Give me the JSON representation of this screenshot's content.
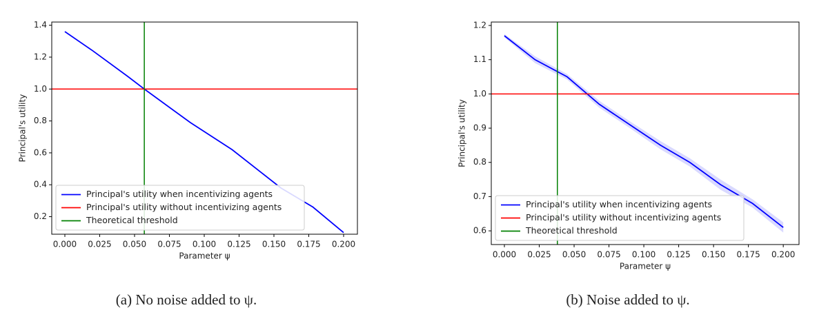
{
  "chart_data": [
    {
      "type": "line",
      "xlabel": "Parameter ψ",
      "ylabel": "Principal's utility",
      "caption": "(a) No noise added to ψ.",
      "xlim": [
        -0.0094,
        0.2099
      ],
      "ylim": [
        0.09,
        1.42
      ],
      "xticks": [
        {
          "value": 0,
          "label": "0.000"
        },
        {
          "value": 0.025,
          "label": "0.025"
        },
        {
          "value": 0.05,
          "label": "0.050"
        },
        {
          "value": 0.075,
          "label": "0.075"
        },
        {
          "value": 0.1,
          "label": "0.100"
        },
        {
          "value": 0.125,
          "label": "0.125"
        },
        {
          "value": 0.15,
          "label": "0.150"
        },
        {
          "value": 0.175,
          "label": "0.175"
        },
        {
          "value": 0.2,
          "label": "0.200"
        }
      ],
      "yticks": [
        0.2,
        0.4,
        0.6,
        0.8,
        {
          "value": 1,
          "label": "1.0"
        },
        1.2,
        1.4
      ],
      "legend": "lower left",
      "series": [
        {
          "name": "Principal's utility when incentivizing agents",
          "color": "#0000ff",
          "x": [
            0,
            0.02,
            0.045,
            0.057,
            0.09,
            0.12,
            0.155,
            0.178,
            0.2
          ],
          "values": [
            1.36,
            1.24,
            1.08,
            1.0,
            0.79,
            0.62,
            0.38,
            0.26,
            0.1
          ]
        },
        {
          "name": "Principal's utility without incentivizing agents",
          "color": "#ff0000",
          "hline": 1
        },
        {
          "name": "Theoretical threshold",
          "color": "#008000",
          "vline": 0.057
        }
      ]
    },
    {
      "type": "line",
      "xlabel": "Parameter ψ",
      "ylabel": "Principal's utility",
      "caption": "(b) Noise added to ψ.",
      "xlim": [
        -0.0094,
        0.2113
      ],
      "ylim": [
        0.56,
        1.21
      ],
      "xticks": [
        {
          "value": 0,
          "label": "0.000"
        },
        {
          "value": 0.025,
          "label": "0.025"
        },
        {
          "value": 0.05,
          "label": "0.050"
        },
        {
          "value": 0.075,
          "label": "0.075"
        },
        {
          "value": 0.1,
          "label": "0.100"
        },
        {
          "value": 0.125,
          "label": "0.125"
        },
        {
          "value": 0.15,
          "label": "0.150"
        },
        {
          "value": 0.175,
          "label": "0.175"
        },
        {
          "value": 0.2,
          "label": "0.200"
        }
      ],
      "yticks": [
        0.6,
        0.7,
        0.8,
        0.9,
        {
          "value": 1,
          "label": "1.0"
        },
        1.1,
        1.2
      ],
      "legend": "lower left",
      "series": [
        {
          "name": "Principal's utility when incentivizing agents",
          "color": "#0000ff",
          "x": [
            0,
            0.022,
            0.045,
            0.068,
            0.09,
            0.112,
            0.133,
            0.155,
            0.178,
            0.2
          ],
          "values": [
            1.17,
            1.1,
            1.05,
            0.97,
            0.91,
            0.85,
            0.8,
            0.735,
            0.68,
            0.61
          ],
          "errors": [
            0.005,
            0.01,
            0.008,
            0.01,
            0.01,
            0.012,
            0.012,
            0.015,
            0.012,
            0.015
          ]
        },
        {
          "name": "Principal's utility without incentivizing agents",
          "color": "#ff0000",
          "hline": 1
        },
        {
          "name": "Theoretical threshold",
          "color": "#008000",
          "vline": 0.038
        }
      ]
    }
  ]
}
